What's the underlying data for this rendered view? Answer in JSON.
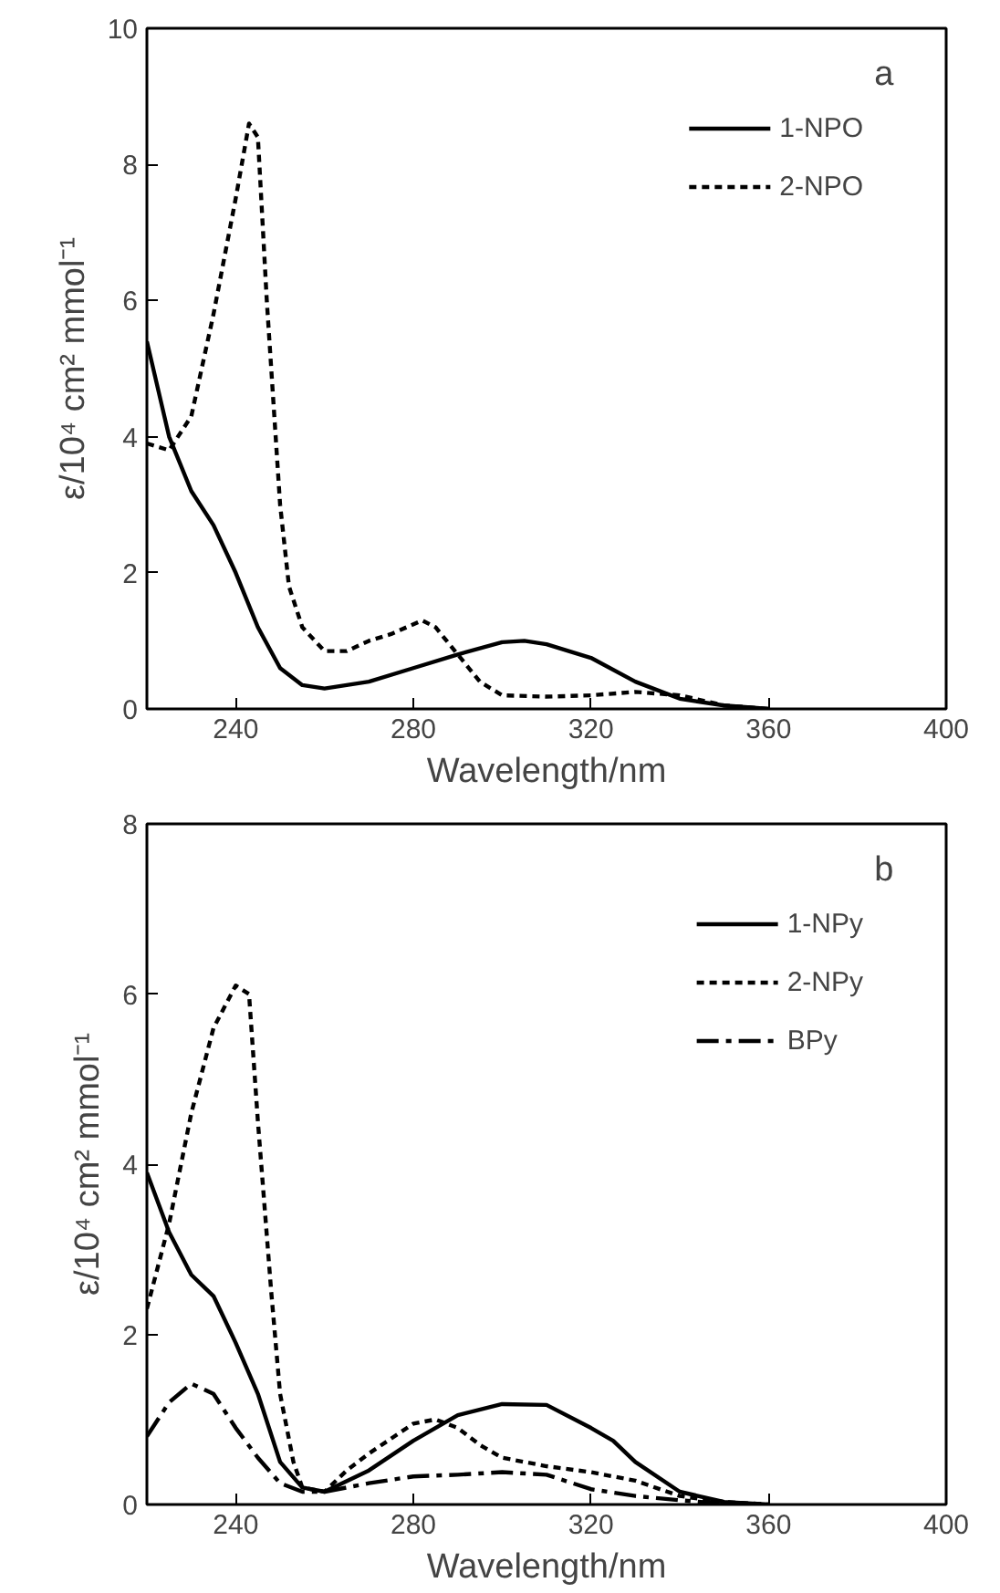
{
  "chart_data": [
    {
      "type": "line",
      "xlabel": "Wavelength/nm",
      "ylabel": "ε/10⁴ cm² mmol⁻¹",
      "annotations": [
        "a"
      ],
      "xlim": [
        220,
        400
      ],
      "xticks": [
        240,
        280,
        320,
        360,
        400
      ],
      "ylim": [
        0,
        10
      ],
      "yticks": [
        0,
        2,
        4,
        6,
        8,
        10
      ],
      "grid": false,
      "legend": "top right",
      "series": [
        {
          "name": "1-NPO",
          "color": "#000000",
          "line_style": "solid",
          "x": [
            220,
            225,
            230,
            235,
            240,
            245,
            250,
            255,
            260,
            270,
            280,
            290,
            300,
            305,
            310,
            320,
            330,
            340,
            350,
            360
          ],
          "values": [
            5.4,
            4.0,
            3.2,
            2.7,
            2.0,
            1.2,
            0.6,
            0.35,
            0.3,
            0.4,
            0.6,
            0.8,
            0.98,
            1.0,
            0.95,
            0.75,
            0.4,
            0.15,
            0.05,
            0
          ]
        },
        {
          "name": "2-NPO",
          "color": "#000000",
          "line_style": "dotted",
          "x": [
            220,
            225,
            230,
            235,
            240,
            243,
            245,
            247,
            250,
            252,
            255,
            260,
            265,
            270,
            275,
            282,
            285,
            290,
            295,
            300,
            310,
            320,
            330,
            340,
            350,
            360
          ],
          "values": [
            3.9,
            3.8,
            4.3,
            5.8,
            7.5,
            8.6,
            8.4,
            6.0,
            3.0,
            1.8,
            1.2,
            0.85,
            0.85,
            1.0,
            1.1,
            1.3,
            1.2,
            0.8,
            0.4,
            0.2,
            0.18,
            0.2,
            0.25,
            0.2,
            0.05,
            0
          ]
        }
      ]
    },
    {
      "type": "line",
      "xlabel": "Wavelength/nm",
      "ylabel": "ε/10⁴ cm² mmol⁻¹",
      "annotations": [
        "b"
      ],
      "xlim": [
        220,
        400
      ],
      "xticks": [
        240,
        280,
        320,
        360,
        400
      ],
      "ylim": [
        0,
        8
      ],
      "yticks": [
        0,
        2,
        4,
        6,
        8
      ],
      "grid": false,
      "legend": "top right",
      "series": [
        {
          "name": "1-NPy",
          "color": "#000000",
          "line_style": "solid",
          "x": [
            220,
            225,
            230,
            235,
            240,
            245,
            250,
            255,
            260,
            270,
            280,
            290,
            300,
            310,
            320,
            325,
            330,
            340,
            350,
            360
          ],
          "values": [
            3.9,
            3.2,
            2.7,
            2.45,
            1.9,
            1.3,
            0.5,
            0.2,
            0.15,
            0.4,
            0.75,
            1.05,
            1.18,
            1.17,
            0.9,
            0.75,
            0.5,
            0.15,
            0.03,
            0
          ]
        },
        {
          "name": "2-NPy",
          "color": "#000000",
          "line_style": "dotted",
          "x": [
            220,
            225,
            230,
            235,
            240,
            243,
            245,
            248,
            250,
            253,
            255,
            260,
            265,
            270,
            280,
            285,
            290,
            295,
            300,
            310,
            320,
            330,
            340,
            350,
            360
          ],
          "values": [
            2.3,
            3.3,
            4.6,
            5.6,
            6.1,
            6.0,
            4.5,
            2.5,
            1.3,
            0.5,
            0.2,
            0.15,
            0.4,
            0.6,
            0.95,
            1.0,
            0.9,
            0.7,
            0.55,
            0.45,
            0.38,
            0.28,
            0.1,
            0.03,
            0
          ]
        },
        {
          "name": "BPy",
          "color": "#000000",
          "line_style": "dashdot",
          "x": [
            220,
            225,
            230,
            235,
            240,
            245,
            250,
            255,
            260,
            270,
            280,
            290,
            300,
            310,
            320,
            330,
            340,
            350,
            360
          ],
          "values": [
            0.8,
            1.2,
            1.42,
            1.3,
            0.9,
            0.55,
            0.25,
            0.15,
            0.15,
            0.25,
            0.33,
            0.35,
            0.38,
            0.35,
            0.18,
            0.1,
            0.05,
            0.01,
            0
          ]
        }
      ]
    }
  ]
}
